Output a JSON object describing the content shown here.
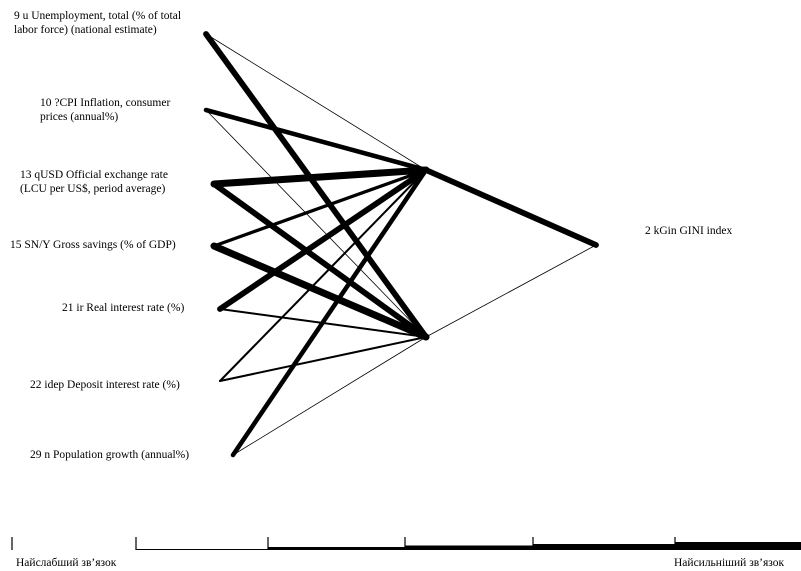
{
  "inputs": [
    {
      "label": "9 u Unemployment, total (% of total\nlabor force) (national estimate)"
    },
    {
      "label": "10 ?CPI Inflation, consumer\nprices (annual%)"
    },
    {
      "label": "13 qUSD Official exchange rate\n(LCU per US$, period average)"
    },
    {
      "label": "15 SN/Y Gross savings (% of GDP)"
    },
    {
      "label": "21 ir Real interest rate (%)"
    },
    {
      "label": "22 idep Deposit interest rate (%)"
    },
    {
      "label": "29 n Population growth (annual%)"
    }
  ],
  "output": {
    "label": "2 kGin GINI index"
  },
  "hidden_nodes": 2,
  "edges_input_hidden": [
    {
      "from": 0,
      "to": 0,
      "weight": 1
    },
    {
      "from": 0,
      "to": 1,
      "weight": 5
    },
    {
      "from": 1,
      "to": 0,
      "weight": 4
    },
    {
      "from": 1,
      "to": 1,
      "weight": 1
    },
    {
      "from": 2,
      "to": 0,
      "weight": 6
    },
    {
      "from": 2,
      "to": 1,
      "weight": 5
    },
    {
      "from": 3,
      "to": 0,
      "weight": 3
    },
    {
      "from": 3,
      "to": 1,
      "weight": 6
    },
    {
      "from": 4,
      "to": 0,
      "weight": 5
    },
    {
      "from": 4,
      "to": 1,
      "weight": 2
    },
    {
      "from": 5,
      "to": 0,
      "weight": 2
    },
    {
      "from": 5,
      "to": 1,
      "weight": 2
    },
    {
      "from": 6,
      "to": 0,
      "weight": 4
    },
    {
      "from": 6,
      "to": 1,
      "weight": 1
    }
  ],
  "edges_hidden_output": [
    {
      "from": 0,
      "weight": 5
    },
    {
      "from": 1,
      "weight": 1
    }
  ],
  "legend": {
    "weakest": "Найслабший зв’язок",
    "strongest": "Найсильніший зв’язок",
    "levels": 6
  }
}
